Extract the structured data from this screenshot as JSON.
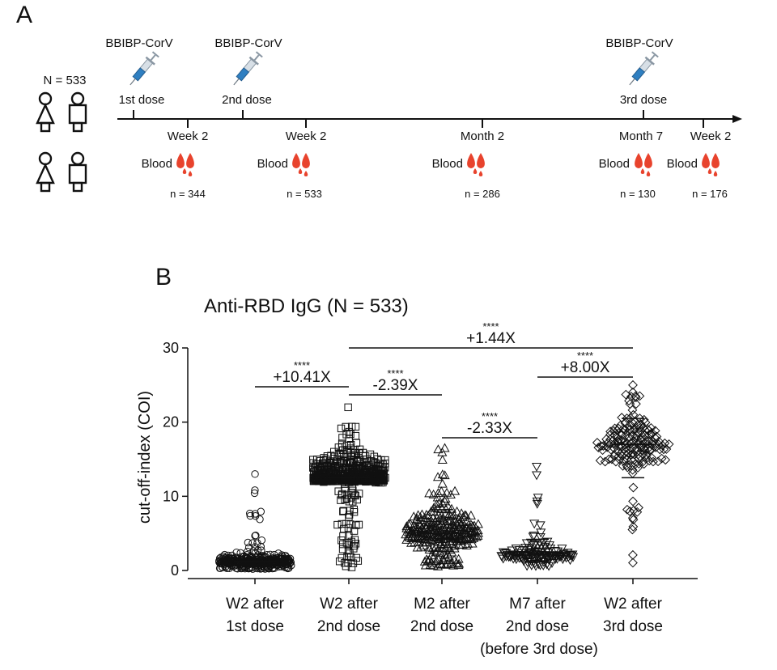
{
  "panel_a": {
    "label": "A",
    "cohort": "N = 533",
    "vaccine_name": "BBIBP-CorV",
    "doses": [
      "1st dose",
      "2nd dose",
      "3rd dose"
    ],
    "blood_label": "Blood",
    "timepoints": [
      {
        "label": "Week 2",
        "n": "n = 344"
      },
      {
        "label": "Week 2",
        "n": "n = 533"
      },
      {
        "label": "Month 2",
        "n": "n = 286"
      },
      {
        "label": "Month 7",
        "n": "n = 130"
      },
      {
        "label": "Week 2",
        "n": "n = 176"
      }
    ]
  },
  "panel_b": {
    "label": "B",
    "comparisons": [
      {
        "stars": "****",
        "label": "+10.41X",
        "from": 0,
        "to": 1
      },
      {
        "stars": "****",
        "label": "-2.39X",
        "from": 1,
        "to": 2
      },
      {
        "stars": "****",
        "label": "-2.33X",
        "from": 2,
        "to": 3
      },
      {
        "stars": "****",
        "label": "+8.00X",
        "from": 3,
        "to": 4
      },
      {
        "stars": "****",
        "label": "+1.44X",
        "from": 1,
        "to": 4
      }
    ]
  },
  "colors": {
    "drop": "#e8432d",
    "syringe_fluid": "#2f7fc1",
    "ink": "#111111"
  },
  "chart_data": {
    "type": "scatter",
    "title": "Anti-RBD IgG (N = 533)",
    "ylabel": "cut-off-index (COI)",
    "ylim": [
      0,
      30
    ],
    "yticks": [
      0,
      10,
      20,
      30
    ],
    "categories": [
      {
        "line1": "W2 after",
        "line2": "1st dose",
        "line3": ""
      },
      {
        "line1": "W2 after",
        "line2": "2nd dose",
        "line3": ""
      },
      {
        "line1": "M2 after",
        "line2": "2nd dose",
        "line3": ""
      },
      {
        "line1": "M7 after",
        "line2": "2nd dose",
        "line3": "(before 3rd dose)"
      },
      {
        "line1": "W2 after",
        "line2": "3rd dose",
        "line3": ""
      }
    ],
    "series": [
      {
        "n": 344,
        "marker": "circle",
        "median": 1.2,
        "q1": 0.6,
        "q3": 2.2,
        "min": 0.2,
        "max": 13.0
      },
      {
        "n": 533,
        "marker": "square",
        "median": 12.5,
        "q1": 11.8,
        "q3": 15.3,
        "min": 0.3,
        "max": 22.0
      },
      {
        "n": 286,
        "marker": "triangle-up",
        "median": 5.0,
        "q1": 2.6,
        "q3": 8.2,
        "min": 0.2,
        "max": 16.5
      },
      {
        "n": 130,
        "marker": "triangle-down",
        "median": 2.1,
        "q1": 1.3,
        "q3": 4.2,
        "min": 0.5,
        "max": 14.0
      },
      {
        "n": 176,
        "marker": "diamond",
        "median": 17.0,
        "q1": 12.5,
        "q3": 20.5,
        "min": 0.2,
        "max": 25.0
      }
    ],
    "grid": false,
    "legend": "none"
  }
}
